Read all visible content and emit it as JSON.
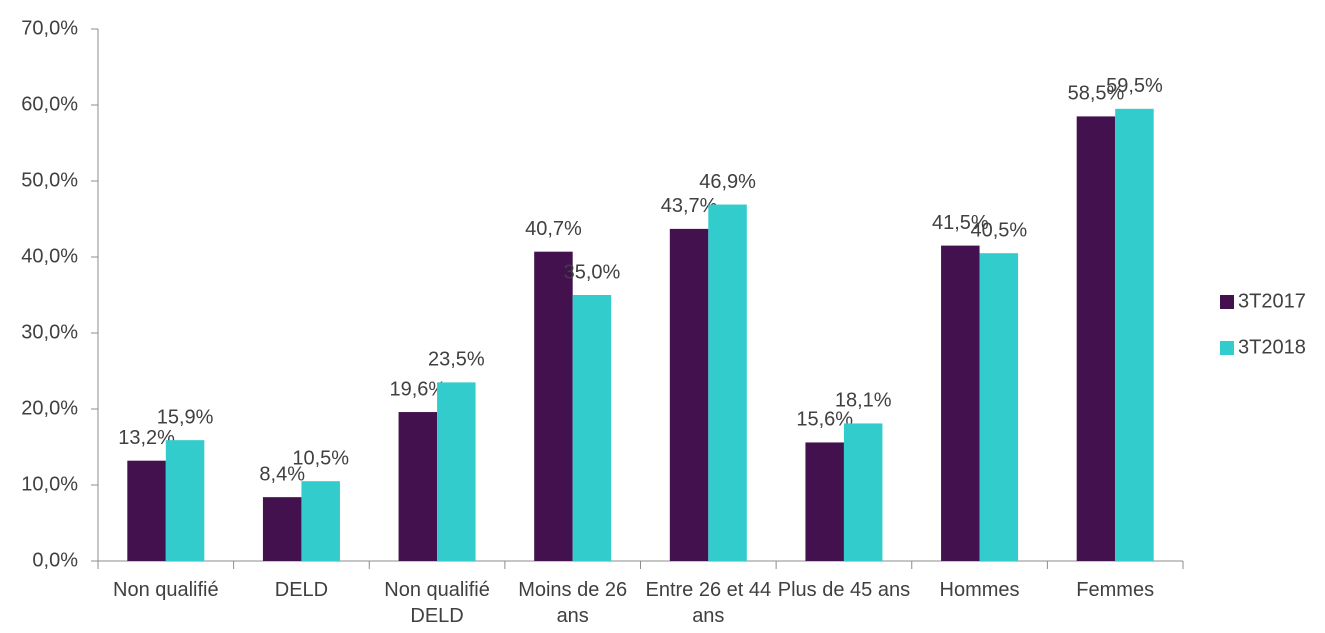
{
  "chart_data": {
    "type": "bar",
    "categories": [
      "Non qualifié",
      "DELD",
      "Non qualifié DELD",
      "Moins de 26 ans",
      "Entre 26 et 44 ans",
      "Plus de 45 ans",
      "Hommes",
      "Femmes"
    ],
    "series": [
      {
        "name": "3T2017",
        "color": "#44114f",
        "values": [
          13.2,
          8.4,
          19.6,
          40.7,
          43.7,
          15.6,
          41.5,
          58.5
        ],
        "value_labels": [
          "13,2%",
          "8,4%",
          "19,6%",
          "40,7%",
          "43,7%",
          "15,6%",
          "41,5%",
          "58,5%"
        ]
      },
      {
        "name": "3T2018",
        "color": "#33cccc",
        "values": [
          15.9,
          10.5,
          23.5,
          35.0,
          46.9,
          18.1,
          40.5,
          59.5
        ],
        "value_labels": [
          "15,9%",
          "10,5%",
          "23,5%",
          "35,0%",
          "46,9%",
          "18,1%",
          "40,5%",
          "59,5%"
        ]
      }
    ],
    "ylim": [
      0,
      70
    ],
    "yticks": [
      {
        "value": 0,
        "label": "0,0%"
      },
      {
        "value": 10,
        "label": "10,0%"
      },
      {
        "value": 20,
        "label": "20,0%"
      },
      {
        "value": 30,
        "label": "30,0%"
      },
      {
        "value": 40,
        "label": "40,0%"
      },
      {
        "value": 50,
        "label": "50,0%"
      },
      {
        "value": 60,
        "label": "60,0%"
      },
      {
        "value": 70,
        "label": "70,0%"
      }
    ],
    "grid": false,
    "legend": "right"
  }
}
